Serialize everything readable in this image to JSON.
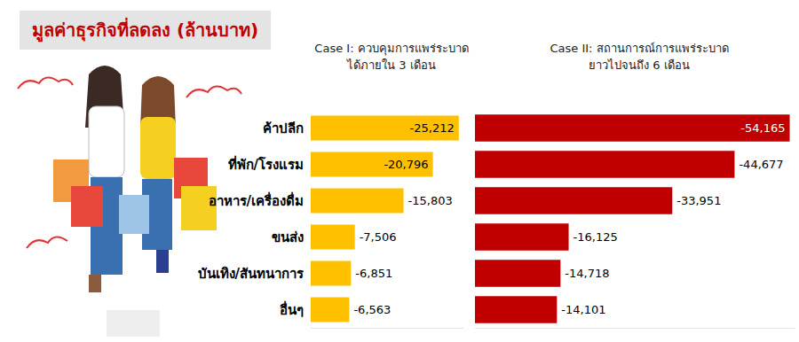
{
  "title": "มูลค่าธุรกิจที่ลดลง (ล้านบาท)",
  "chart_data": [
    {
      "type": "bar",
      "orientation": "horizontal",
      "title": "Case I: ควบคุมการแพร่ระบาด\nได้ภายใน 3 เดือน",
      "categories": [
        "ค้าปลีก",
        "ที่พัก/โรงแรม",
        "อาหาร/เครื่องดื่ม",
        "ขนส่ง",
        "บันเทิง/สันทนาการ",
        "อื่นๆ"
      ],
      "values": [
        -25212,
        -20796,
        -15803,
        -7506,
        -6851,
        -6563
      ],
      "value_labels": [
        "-25,212",
        "-20,796",
        "-15,803",
        "-7,506",
        "-6,851",
        "-6,563"
      ],
      "color": "#ffc000",
      "xlim": [
        -26000,
        0
      ],
      "data_labels": true,
      "tick_labels": "y",
      "grid": false
    },
    {
      "type": "bar",
      "orientation": "horizontal",
      "title": "Case II: สถานการณ์การแพร่ระบาด\nยาวไปจนถึง 6 เดือน",
      "categories": [
        "ค้าปลีก",
        "ที่พัก/โรงแรม",
        "อาหาร/เครื่องดื่ม",
        "ขนส่ง",
        "บันเทิง/สันทนาการ",
        "อื่นๆ"
      ],
      "values": [
        -54165,
        -44677,
        -33951,
        -16125,
        -14718,
        -14101
      ],
      "value_labels": [
        "-54,165",
        "-44,677",
        "-33,951",
        "-16,125",
        "-14,718",
        "-14,101"
      ],
      "color": "#c00000",
      "xlim": [
        -55000,
        0
      ],
      "data_labels": true,
      "tick_labels": false,
      "grid": false
    }
  ]
}
